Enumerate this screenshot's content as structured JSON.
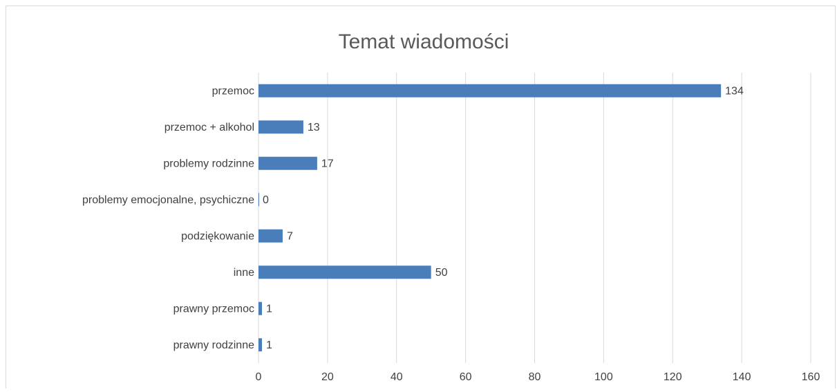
{
  "chart_data": {
    "type": "bar",
    "orientation": "horizontal",
    "title": "Temat wiadomości",
    "categories": [
      "przemoc",
      "przemoc + alkohol",
      "problemy rodzinne",
      "problemy emocjonalne, psychiczne",
      "podziękowanie",
      "inne",
      "prawny przemoc",
      "prawny rodzinne"
    ],
    "values": [
      134,
      13,
      17,
      0,
      7,
      50,
      1,
      1
    ],
    "color": "#4a7ebb",
    "xlim": [
      0,
      160
    ],
    "xticks": [
      0,
      20,
      40,
      60,
      80,
      100,
      120,
      140,
      160
    ],
    "grid": true
  }
}
